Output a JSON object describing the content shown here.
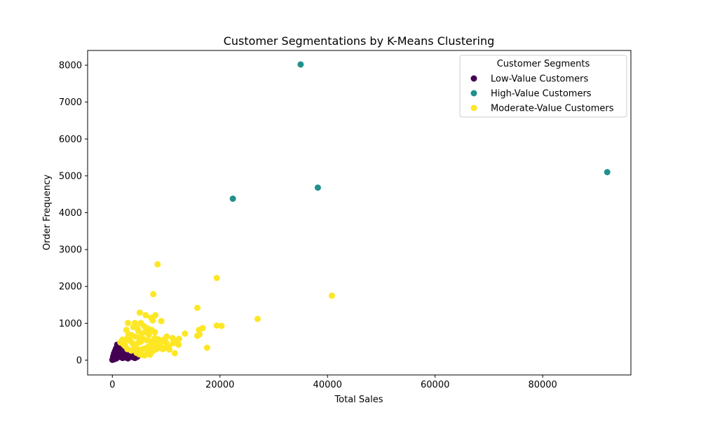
{
  "chart_data": {
    "type": "scatter",
    "title": "Customer Segmentations by K-Means Clustering",
    "xlabel": "Total Sales",
    "ylabel": "Order Frequency",
    "xlim": [
      -4600,
      96400
    ],
    "ylim": [
      -400,
      8400
    ],
    "xticks": [
      0,
      20000,
      40000,
      60000,
      80000
    ],
    "xtick_labels": [
      "0",
      "20000",
      "40000",
      "60000",
      "80000"
    ],
    "yticks": [
      0,
      1000,
      2000,
      3000,
      4000,
      5000,
      6000,
      7000,
      8000
    ],
    "ytick_labels": [
      "0",
      "1000",
      "2000",
      "3000",
      "4000",
      "5000",
      "6000",
      "7000",
      "8000"
    ],
    "grid": false,
    "legend": {
      "title": "Customer Segments",
      "placement": "upper right"
    },
    "series": [
      {
        "name": "Low-Value Customers",
        "color": "#440154",
        "points": [
          [
            0,
            10
          ],
          [
            100,
            40
          ],
          [
            200,
            20
          ],
          [
            300,
            80
          ],
          [
            400,
            30
          ],
          [
            500,
            60
          ],
          [
            600,
            110
          ],
          [
            700,
            45
          ],
          [
            800,
            150
          ],
          [
            900,
            70
          ],
          [
            1000,
            200
          ],
          [
            1100,
            90
          ],
          [
            1200,
            260
          ],
          [
            1300,
            130
          ],
          [
            1400,
            300
          ],
          [
            1500,
            170
          ],
          [
            1600,
            220
          ],
          [
            1700,
            110
          ],
          [
            1800,
            240
          ],
          [
            1900,
            60
          ],
          [
            2000,
            180
          ],
          [
            2100,
            120
          ],
          [
            2200,
            280
          ],
          [
            2300,
            90
          ],
          [
            2400,
            150
          ],
          [
            2500,
            210
          ],
          [
            2600,
            70
          ],
          [
            2700,
            190
          ],
          [
            2800,
            130
          ],
          [
            2900,
            50
          ],
          [
            3000,
            160
          ],
          [
            3200,
            230
          ],
          [
            3400,
            100
          ],
          [
            3600,
            170
          ],
          [
            3800,
            80
          ],
          [
            4000,
            140
          ],
          [
            4200,
            60
          ],
          [
            4400,
            120
          ],
          [
            4600,
            90
          ],
          [
            900,
            420
          ],
          [
            1100,
            350
          ],
          [
            1300,
            380
          ],
          [
            700,
            320
          ],
          [
            1500,
            330
          ],
          [
            500,
            250
          ],
          [
            300,
            180
          ],
          [
            1800,
            300
          ],
          [
            2200,
            350
          ],
          [
            2600,
            260
          ],
          [
            3400,
            240
          ],
          [
            150,
            100
          ],
          [
            350,
            140
          ],
          [
            650,
            200
          ],
          [
            850,
            260
          ],
          [
            1050,
            300
          ],
          [
            1250,
            220
          ],
          [
            1450,
            90
          ],
          [
            1650,
            150
          ],
          [
            1950,
            210
          ],
          [
            2350,
            200
          ],
          [
            2750,
            120
          ],
          [
            3100,
            90
          ],
          [
            3300,
            140
          ],
          [
            3700,
            120
          ]
        ]
      },
      {
        "name": "High-Value Customers",
        "color": "#21918c",
        "points": [
          [
            35000,
            8020
          ],
          [
            92000,
            5100
          ],
          [
            38200,
            4680
          ],
          [
            22400,
            4380
          ]
        ]
      },
      {
        "name": "Moderate-Value Customers",
        "color": "#fde725",
        "points": [
          [
            8400,
            2600
          ],
          [
            19400,
            2230
          ],
          [
            7600,
            1790
          ],
          [
            40800,
            1750
          ],
          [
            15800,
            1420
          ],
          [
            5100,
            1290
          ],
          [
            6200,
            1220
          ],
          [
            8000,
            1220
          ],
          [
            7200,
            1150
          ],
          [
            27000,
            1120
          ],
          [
            7500,
            1080
          ],
          [
            9100,
            1060
          ],
          [
            2900,
            1010
          ],
          [
            4200,
            1010
          ],
          [
            5300,
            1010
          ],
          [
            19400,
            940
          ],
          [
            20300,
            930
          ],
          [
            16800,
            870
          ],
          [
            16100,
            820
          ],
          [
            2600,
            820
          ],
          [
            4800,
            800
          ],
          [
            13500,
            720
          ],
          [
            7900,
            760
          ],
          [
            17600,
            340
          ],
          [
            11600,
            190
          ],
          [
            16200,
            700
          ],
          [
            15800,
            660
          ],
          [
            12300,
            420
          ],
          [
            10500,
            380
          ],
          [
            9400,
            300
          ],
          [
            11200,
            600
          ],
          [
            10100,
            640
          ],
          [
            9600,
            560
          ],
          [
            8900,
            500
          ],
          [
            8200,
            450
          ],
          [
            7700,
            400
          ],
          [
            7100,
            380
          ],
          [
            6600,
            360
          ],
          [
            6100,
            320
          ],
          [
            5600,
            300
          ],
          [
            5200,
            280
          ],
          [
            4800,
            260
          ],
          [
            4400,
            320
          ],
          [
            4100,
            380
          ],
          [
            3800,
            440
          ],
          [
            3500,
            500
          ],
          [
            3200,
            560
          ],
          [
            2900,
            620
          ],
          [
            2600,
            540
          ],
          [
            2300,
            480
          ],
          [
            2100,
            420
          ],
          [
            1900,
            560
          ],
          [
            1700,
            520
          ],
          [
            1500,
            480
          ],
          [
            3000,
            700
          ],
          [
            3600,
            680
          ],
          [
            4300,
            640
          ],
          [
            5000,
            600
          ],
          [
            5700,
            580
          ],
          [
            6400,
            540
          ],
          [
            7000,
            520
          ],
          [
            7600,
            470
          ],
          [
            8300,
            420
          ],
          [
            9000,
            370
          ],
          [
            9800,
            330
          ],
          [
            10600,
            290
          ],
          [
            11300,
            460
          ],
          [
            11800,
            520
          ],
          [
            12400,
            580
          ],
          [
            5400,
            720
          ],
          [
            6100,
            760
          ],
          [
            6800,
            690
          ],
          [
            4600,
            880
          ],
          [
            3900,
            900
          ],
          [
            5900,
            920
          ],
          [
            6600,
            860
          ],
          [
            7300,
            820
          ],
          [
            7900,
            600
          ],
          [
            8600,
            560
          ],
          [
            9300,
            520
          ],
          [
            10000,
            480
          ],
          [
            4500,
            200
          ],
          [
            5000,
            160
          ],
          [
            5500,
            140
          ],
          [
            6000,
            130
          ],
          [
            6500,
            180
          ],
          [
            7000,
            150
          ],
          [
            3500,
            260
          ],
          [
            2800,
            300
          ],
          [
            2400,
            380
          ],
          [
            4700,
            460
          ],
          [
            5300,
            500
          ],
          [
            6900,
            260
          ],
          [
            7400,
            230
          ],
          [
            8100,
            290
          ],
          [
            8700,
            340
          ]
        ]
      }
    ]
  }
}
